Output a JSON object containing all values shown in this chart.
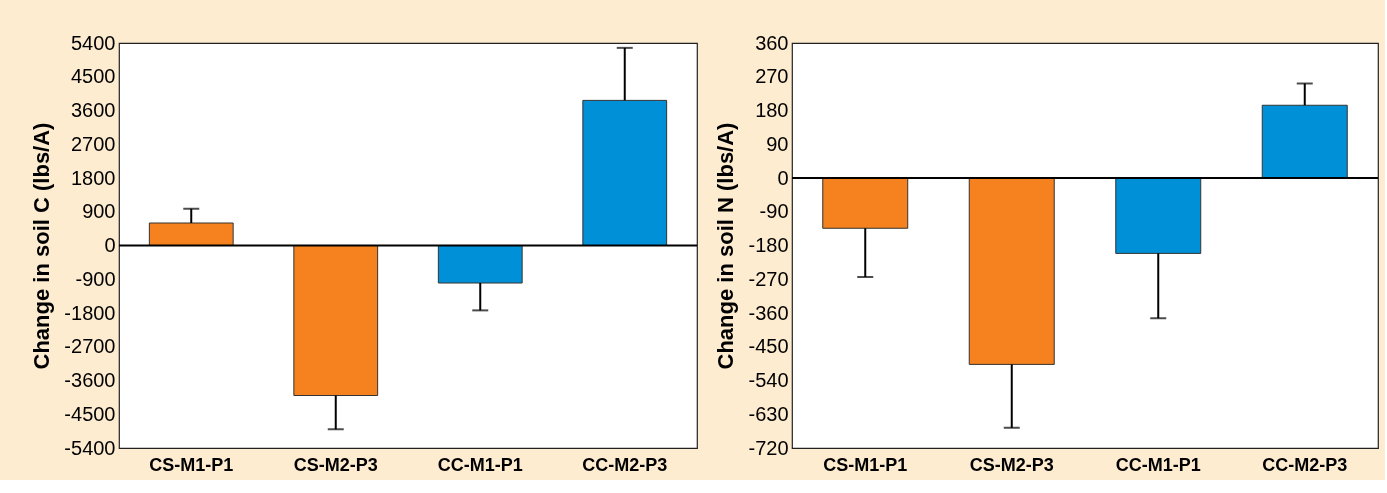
{
  "chart_data": [
    {
      "type": "bar",
      "ylabel": "Change in soil C (lbs/A)",
      "categories": [
        "CS-M1-P1",
        "CS-M2-P3",
        "CC-M1-P1",
        "CC-M2-P3"
      ],
      "values": [
        600,
        -4000,
        -1000,
        3870
      ],
      "colors": [
        "#f5821f",
        "#f5821f",
        "#0090d8",
        "#0090d8"
      ],
      "errors": [
        [
          600,
          980
        ],
        [
          -4900,
          -4000
        ],
        [
          -1730,
          -1000
        ],
        [
          3870,
          5270
        ]
      ],
      "ylim": [
        -5400,
        5400
      ],
      "yticks": [
        -5400,
        -4500,
        -3600,
        -2700,
        -1800,
        -900,
        0,
        900,
        1800,
        2700,
        3600,
        4500,
        5400
      ],
      "ref_lines": [
        {
          "axis": "y",
          "value": 0,
          "color": "#000000"
        }
      ],
      "grid": false
    },
    {
      "type": "bar",
      "ylabel": "Change in soil N (lbs/A)",
      "categories": [
        "CS-M1-P1",
        "CS-M2-P3",
        "CC-M1-P1",
        "CC-M2-P3"
      ],
      "values": [
        -134,
        -497,
        -201,
        194
      ],
      "colors": [
        "#f5821f",
        "#f5821f",
        "#0090d8",
        "#0090d8"
      ],
      "errors": [
        [
          -264,
          -134
        ],
        [
          -666,
          -497
        ],
        [
          -374,
          -201
        ],
        [
          194,
          252
        ]
      ],
      "ylim": [
        -720,
        360
      ],
      "yticks": [
        -720,
        -630,
        -540,
        -450,
        -360,
        -270,
        -180,
        -90,
        0,
        90,
        180,
        270,
        360
      ],
      "ref_lines": [
        {
          "axis": "y",
          "value": 0,
          "color": "#000000"
        }
      ],
      "grid": false
    }
  ]
}
